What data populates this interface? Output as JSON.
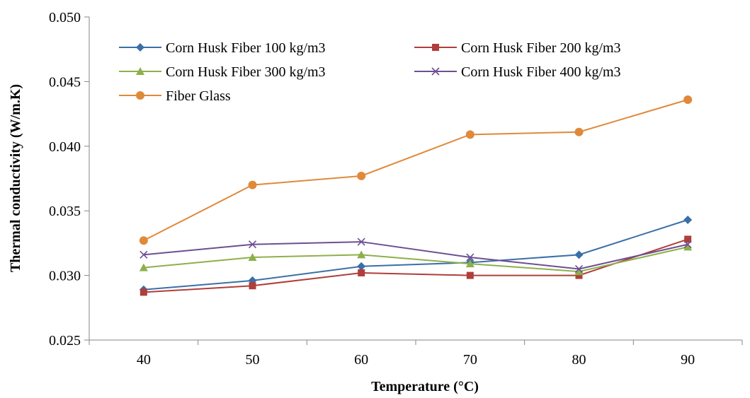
{
  "chart_data": {
    "type": "line",
    "title": "",
    "xlabel": "Temperature (°C)",
    "ylabel": "Thermal conductivity (W/m.K)",
    "x": [
      40,
      50,
      60,
      70,
      80,
      90
    ],
    "x_tick_labels": [
      "40",
      "50",
      "60",
      "70",
      "80",
      "90"
    ],
    "ylim": [
      0.025,
      0.05
    ],
    "y_ticks": [
      0.025,
      0.03,
      0.035,
      0.04,
      0.045,
      0.05
    ],
    "y_tick_labels": [
      "0.025",
      "0.030",
      "0.035",
      "0.040",
      "0.045",
      "0.050"
    ],
    "grid": false,
    "legend_position": "top-left, inside",
    "series": [
      {
        "name": "Corn Husk Fiber 100 kg/m3",
        "color": "#3b6fa8",
        "marker": "diamond",
        "values": [
          0.0289,
          0.0296,
          0.0307,
          0.031,
          0.0316,
          0.0343
        ]
      },
      {
        "name": "Corn Husk Fiber 200 kg/m3",
        "color": "#b03e3a",
        "marker": "square",
        "values": [
          0.0287,
          0.0292,
          0.0302,
          0.03,
          0.03,
          0.0328
        ]
      },
      {
        "name": "Corn Husk Fiber 300 kg/m3",
        "color": "#8db04a",
        "marker": "triangle",
        "values": [
          0.0306,
          0.0314,
          0.0316,
          0.0309,
          0.0303,
          0.0322
        ]
      },
      {
        "name": "Corn Husk Fiber 400 kg/m3",
        "color": "#6d4f92",
        "marker": "x",
        "values": [
          0.0316,
          0.0324,
          0.0326,
          0.0314,
          0.0305,
          0.0324
        ]
      },
      {
        "name": "Fiber Glass",
        "color": "#e0893a",
        "marker": "circle",
        "values": [
          0.0327,
          0.037,
          0.0377,
          0.0409,
          0.0411,
          0.0436
        ]
      }
    ]
  }
}
